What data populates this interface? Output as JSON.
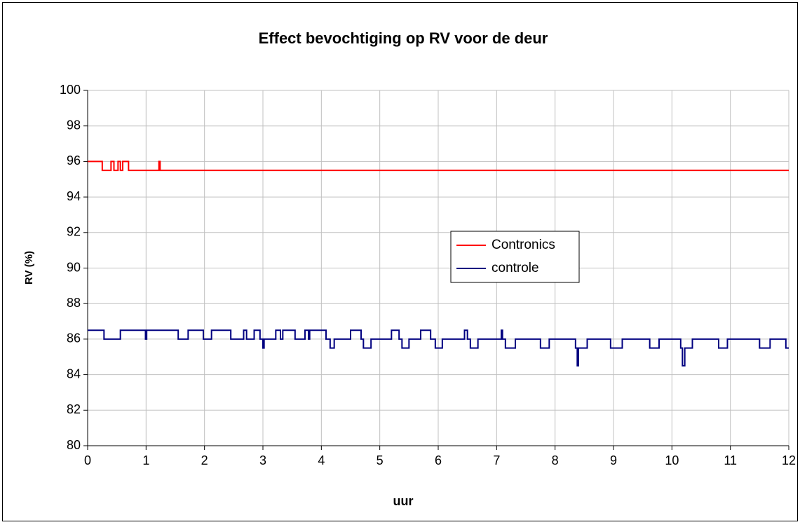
{
  "chart_data": {
    "type": "line",
    "title": "Effect bevochtiging op RV voor de deur",
    "x_label": "uur",
    "y_label": "RV (%)",
    "step": "post",
    "grid": true,
    "legend": "right",
    "xlim": [
      0,
      12
    ],
    "xticks": [
      0,
      1,
      2,
      3,
      4,
      5,
      6,
      7,
      8,
      9,
      10,
      11,
      12
    ],
    "ylim": [
      80,
      100
    ],
    "yticks": [
      80,
      82,
      84,
      86,
      88,
      90,
      92,
      94,
      96,
      98,
      100
    ],
    "series": [
      {
        "name": "Contronics",
        "color": "#ff0000",
        "x": [
          0,
          0.25,
          0.4,
          0.45,
          0.52,
          0.56,
          0.6,
          0.7,
          1.22,
          1.24,
          12
        ],
        "values": [
          96,
          95.5,
          96,
          95.5,
          96,
          95.5,
          96,
          95.5,
          96,
          95.5,
          95.5
        ]
      },
      {
        "name": "controle",
        "color": "#000080",
        "x": [
          0,
          0.28,
          0.56,
          0.99,
          1.01,
          1.55,
          1.72,
          1.98,
          2.12,
          2.45,
          2.67,
          2.72,
          2.85,
          2.95,
          3.0,
          3.02,
          3.22,
          3.3,
          3.34,
          3.55,
          3.72,
          3.78,
          3.8,
          4.08,
          4.15,
          4.22,
          4.5,
          4.68,
          4.72,
          4.85,
          5.2,
          5.33,
          5.38,
          5.5,
          5.7,
          5.87,
          5.95,
          6.07,
          6.45,
          6.5,
          6.55,
          6.68,
          7.08,
          7.1,
          7.15,
          7.32,
          7.75,
          7.9,
          8.35,
          8.38,
          8.4,
          8.55,
          8.95,
          9.15,
          9.62,
          9.78,
          10.15,
          10.18,
          10.22,
          10.35,
          10.8,
          10.95,
          11.5,
          11.68,
          11.95,
          12
        ],
        "values": [
          86.5,
          86,
          86.5,
          86,
          86.5,
          86,
          86.5,
          86,
          86.5,
          86,
          86.5,
          86,
          86.5,
          86,
          85.5,
          86,
          86.5,
          86,
          86.5,
          86,
          86.5,
          86,
          86.5,
          86,
          85.5,
          86,
          86.5,
          86,
          85.5,
          86,
          86.5,
          86,
          85.5,
          86,
          86.5,
          86,
          85.5,
          86,
          86.5,
          86,
          85.5,
          86,
          86.5,
          86,
          85.5,
          86,
          85.5,
          86,
          85.5,
          84.5,
          85.5,
          86,
          85.5,
          86,
          85.5,
          86,
          85.5,
          84.5,
          85.5,
          86,
          85.5,
          86,
          85.5,
          86,
          85.5,
          85.5
        ]
      }
    ]
  }
}
